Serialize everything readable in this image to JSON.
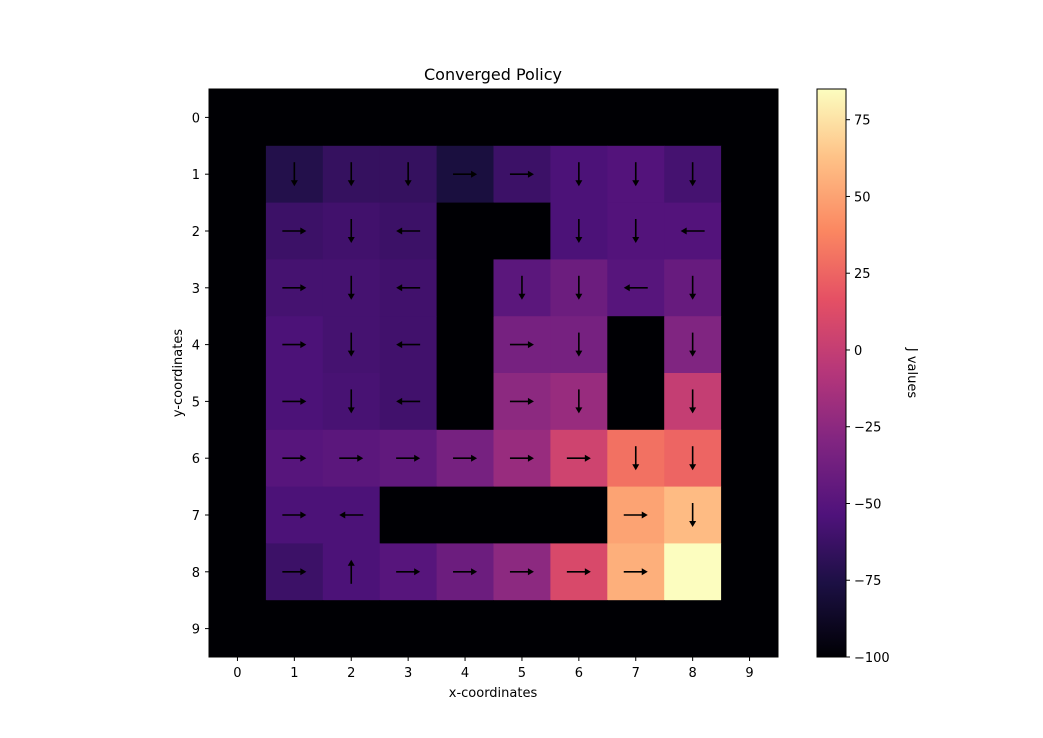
{
  "chart_data": {
    "type": "heatmap",
    "title": "Converged Policy",
    "xlabel": "x-coordinates",
    "ylabel": "y-coordinates",
    "x_ticks": [
      "0",
      "1",
      "2",
      "3",
      "4",
      "5",
      "6",
      "7",
      "8",
      "9"
    ],
    "y_ticks": [
      "0",
      "1",
      "2",
      "3",
      "4",
      "5",
      "6",
      "7",
      "8",
      "9"
    ],
    "colormap": "magma",
    "colorbar": {
      "label": "J values",
      "vmin": -100,
      "vmax": 85,
      "ticks": [
        -100,
        -75,
        -50,
        -25,
        0,
        25,
        50,
        75
      ],
      "tick_labels": [
        "−100",
        "−75",
        "−50",
        "−25",
        "0",
        "25",
        "50",
        "75"
      ]
    },
    "j_values": [
      [
        -100,
        -100,
        -100,
        -100,
        -100,
        -100,
        -100,
        -100,
        -100,
        -100
      ],
      [
        -100,
        -73,
        -65,
        -65,
        -78,
        -62,
        -55,
        -52,
        -58,
        -100
      ],
      [
        -100,
        -62,
        -60,
        -62,
        -100,
        -100,
        -55,
        -52,
        -52,
        -100
      ],
      [
        -100,
        -58,
        -58,
        -60,
        -100,
        -48,
        -40,
        -50,
        -42,
        -100
      ],
      [
        -100,
        -55,
        -58,
        -60,
        -100,
        -35,
        -35,
        -100,
        -30,
        -100
      ],
      [
        -100,
        -55,
        -57,
        -60,
        -100,
        -25,
        -20,
        -100,
        0,
        -100
      ],
      [
        -100,
        -50,
        -48,
        -45,
        -35,
        -20,
        5,
        30,
        25,
        -100
      ],
      [
        -100,
        -55,
        -55,
        -100,
        -100,
        -100,
        -100,
        50,
        60,
        -100
      ],
      [
        -100,
        -62,
        -55,
        -50,
        -40,
        -25,
        10,
        55,
        85,
        -100
      ],
      [
        -100,
        -100,
        -100,
        -100,
        -100,
        -100,
        -100,
        -100,
        -100,
        -100
      ]
    ],
    "policy": [
      [
        "",
        "",
        "",
        "",
        "",
        "",
        "",
        "",
        "",
        ""
      ],
      [
        "",
        "down",
        "down",
        "down",
        "right",
        "right",
        "down",
        "down",
        "down",
        ""
      ],
      [
        "",
        "right",
        "down",
        "left",
        "",
        "",
        "down",
        "down",
        "left",
        ""
      ],
      [
        "",
        "right",
        "down",
        "left",
        "",
        "down",
        "down",
        "left",
        "down",
        ""
      ],
      [
        "",
        "right",
        "down",
        "left",
        "",
        "right",
        "down",
        "",
        "down",
        ""
      ],
      [
        "",
        "right",
        "down",
        "left",
        "",
        "right",
        "down",
        "",
        "down",
        ""
      ],
      [
        "",
        "right",
        "right",
        "right",
        "right",
        "right",
        "right",
        "down",
        "down",
        ""
      ],
      [
        "",
        "right",
        "left",
        "",
        "",
        "",
        "",
        "right",
        "down",
        ""
      ],
      [
        "",
        "right",
        "up",
        "right",
        "right",
        "right",
        "right",
        "right",
        "",
        ""
      ],
      [
        "",
        "",
        "",
        "",
        "",
        "",
        "",
        "",
        "",
        ""
      ]
    ]
  }
}
